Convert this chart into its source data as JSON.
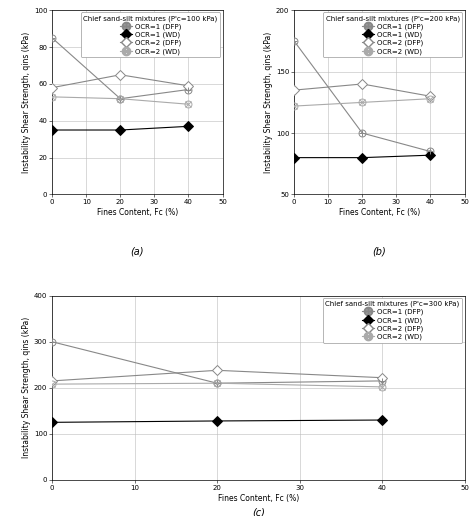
{
  "subplots": [
    {
      "title": "Chief sand-silt mixtures (P'c=100 kPa)",
      "ylabel": "Instability Shear Strength, qins (kPa)",
      "xlabel": "Fines Content, Fc (%)",
      "label": "(a)",
      "ylim": [
        0,
        100
      ],
      "yticks": [
        0,
        20,
        40,
        60,
        80,
        100
      ],
      "xlim": [
        0,
        50
      ],
      "xticks": [
        0,
        10,
        20,
        30,
        40,
        50
      ],
      "series": [
        {
          "label": "OCR=1 (DFP)",
          "x": [
            0,
            20,
            40
          ],
          "y": [
            85,
            52,
            57
          ],
          "marker": "circle_plus",
          "color": "#888888",
          "linecolor": "#888888",
          "markersize": 5,
          "linewidth": 0.8
        },
        {
          "label": "OCR=1 (WD)",
          "x": [
            0,
            20,
            40
          ],
          "y": [
            35,
            35,
            37
          ],
          "marker": "diamond_filled",
          "color": "#000000",
          "linecolor": "#000000",
          "markersize": 5,
          "linewidth": 0.8
        },
        {
          "label": "OCR=2 (DFP)",
          "x": [
            0,
            20,
            40
          ],
          "y": [
            58,
            65,
            59
          ],
          "marker": "diamond_open",
          "color": "#888888",
          "linecolor": "#888888",
          "markersize": 5,
          "linewidth": 0.8
        },
        {
          "label": "OCR=2 (WD)",
          "x": [
            0,
            20,
            40
          ],
          "y": [
            53,
            52,
            49
          ],
          "marker": "x_circle",
          "color": "#aaaaaa",
          "linecolor": "#aaaaaa",
          "markersize": 5,
          "linewidth": 0.8
        }
      ]
    },
    {
      "title": "Chief sand-silt mixtures (P'c=200 kPa)",
      "ylabel": "Instability Shear Strength, qins (kPa)",
      "xlabel": "Fines Content, Fc (%)",
      "label": "(b)",
      "ylim": [
        50,
        200
      ],
      "yticks": [
        50,
        100,
        150,
        200
      ],
      "xlim": [
        0,
        50
      ],
      "xticks": [
        0,
        10,
        20,
        30,
        40,
        50
      ],
      "series": [
        {
          "label": "OCR=1 (DFP)",
          "x": [
            0,
            20,
            40
          ],
          "y": [
            175,
            100,
            85
          ],
          "marker": "circle_plus",
          "color": "#888888",
          "linecolor": "#888888",
          "markersize": 5,
          "linewidth": 0.8
        },
        {
          "label": "OCR=1 (WD)",
          "x": [
            0,
            20,
            40
          ],
          "y": [
            80,
            80,
            82
          ],
          "marker": "diamond_filled",
          "color": "#000000",
          "linecolor": "#000000",
          "markersize": 5,
          "linewidth": 0.8
        },
        {
          "label": "OCR=2 (DFP)",
          "x": [
            0,
            20,
            40
          ],
          "y": [
            135,
            140,
            130
          ],
          "marker": "diamond_open",
          "color": "#888888",
          "linecolor": "#888888",
          "markersize": 5,
          "linewidth": 0.8
        },
        {
          "label": "OCR=2 (WD)",
          "x": [
            0,
            20,
            40
          ],
          "y": [
            122,
            125,
            128
          ],
          "marker": "x_circle",
          "color": "#aaaaaa",
          "linecolor": "#aaaaaa",
          "markersize": 5,
          "linewidth": 0.8
        }
      ]
    },
    {
      "title": "Chief sand-silt mixtures (P'c=300 kPa)",
      "ylabel": "Instability Shear Strength, qins (kPa)",
      "xlabel": "Fines Content, Fc (%)",
      "label": "(c)",
      "ylim": [
        0,
        400
      ],
      "yticks": [
        0,
        100,
        200,
        300,
        400
      ],
      "xlim": [
        0,
        50
      ],
      "xticks": [
        0,
        10,
        20,
        30,
        40,
        50
      ],
      "series": [
        {
          "label": "OCR=1 (DFP)",
          "x": [
            0,
            20,
            40
          ],
          "y": [
            300,
            210,
            215
          ],
          "marker": "circle_plus",
          "color": "#888888",
          "linecolor": "#888888",
          "markersize": 5,
          "linewidth": 0.8
        },
        {
          "label": "OCR=1 (WD)",
          "x": [
            0,
            20,
            40
          ],
          "y": [
            125,
            128,
            130
          ],
          "marker": "diamond_filled",
          "color": "#000000",
          "linecolor": "#000000",
          "markersize": 5,
          "linewidth": 0.8
        },
        {
          "label": "OCR=2 (DFP)",
          "x": [
            0,
            20,
            40
          ],
          "y": [
            215,
            238,
            222
          ],
          "marker": "diamond_open",
          "color": "#888888",
          "linecolor": "#888888",
          "markersize": 5,
          "linewidth": 0.8
        },
        {
          "label": "OCR=2 (WD)",
          "x": [
            0,
            20,
            40
          ],
          "y": [
            208,
            210,
            202
          ],
          "marker": "x_circle",
          "color": "#aaaaaa",
          "linecolor": "#aaaaaa",
          "markersize": 5,
          "linewidth": 0.8
        }
      ]
    }
  ],
  "background_color": "#ffffff",
  "grid_color": "#bbbbbb",
  "font_size": 5.5,
  "label_font_size": 5.5,
  "legend_font_size": 5.0,
  "legend_title_font_size": 5.0,
  "tick_font_size": 5.0
}
